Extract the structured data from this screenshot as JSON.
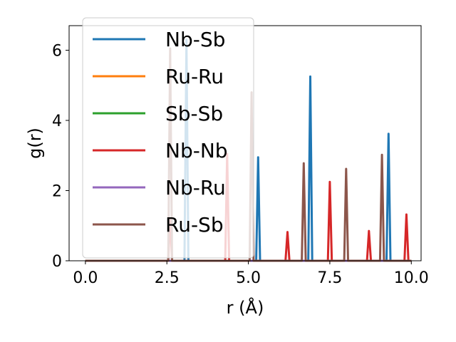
{
  "chart_data": {
    "type": "line",
    "title": "",
    "xlabel": "r (Å)",
    "ylabel": "g(r)",
    "xlim": [
      -0.5,
      10.3
    ],
    "ylim": [
      0,
      6.7
    ],
    "xticks": [
      0.0,
      2.5,
      5.0,
      7.5,
      10.0
    ],
    "xtick_labels": [
      "0.0",
      "2.5",
      "5.0",
      "7.5",
      "10.0"
    ],
    "yticks": [
      0,
      2,
      4,
      6
    ],
    "ytick_labels": [
      "0",
      "2",
      "4",
      "6"
    ],
    "grid": false,
    "legend_position": "top-left",
    "series": [
      {
        "name": "Nb-Sb",
        "color": "#1f77b4",
        "peaks": [
          [
            3.1,
            6.3
          ],
          [
            5.3,
            2.95
          ],
          [
            6.9,
            5.25
          ],
          [
            9.3,
            3.62
          ]
        ]
      },
      {
        "name": "Ru-Ru",
        "color": "#ff7f0e",
        "peaks": []
      },
      {
        "name": "Sb-Sb",
        "color": "#2ca02c",
        "peaks": []
      },
      {
        "name": "Nb-Nb",
        "color": "#d62728",
        "peaks": [
          [
            2.6,
            1.2
          ],
          [
            4.35,
            3.05
          ],
          [
            6.2,
            0.82
          ],
          [
            7.5,
            2.25
          ],
          [
            8.7,
            0.85
          ],
          [
            9.85,
            1.32
          ]
        ]
      },
      {
        "name": "Nb-Ru",
        "color": "#9467bd",
        "peaks": []
      },
      {
        "name": "Ru-Sb",
        "color": "#8c564b",
        "peaks": [
          [
            2.6,
            6.05
          ],
          [
            5.1,
            4.8
          ],
          [
            6.7,
            2.78
          ],
          [
            8.0,
            2.62
          ],
          [
            9.1,
            3.02
          ]
        ]
      }
    ]
  }
}
